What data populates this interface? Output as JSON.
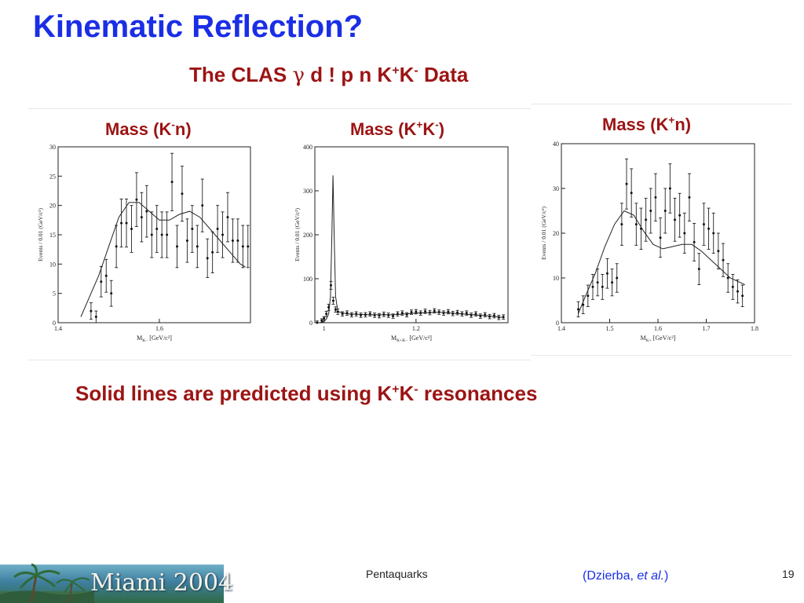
{
  "slide": {
    "title": "Kinematic Reflection?",
    "subtitle": {
      "prefix": "The CLAS ",
      "gamma": "γ",
      "mid": " d ! p n K",
      "sup1": "+",
      "k2": "K",
      "sup2": "-",
      "suffix": " Data"
    },
    "caption": {
      "prefix": "Solid lines are predicted using K",
      "sup1": "+",
      "k2": "K",
      "sup2": "-",
      "suffix": " resonances"
    }
  },
  "panels": {
    "kn": {
      "label_a": "Mass (K",
      "label_sup": "-",
      "label_b": "n)"
    },
    "kk": {
      "label_a": "Mass (K",
      "label_sup1": "+",
      "label_mid": "K",
      "label_sup2": "-",
      "label_b": ")"
    },
    "kpn": {
      "label_a": "Mass (K",
      "label_sup": "+",
      "label_b": "n)"
    }
  },
  "chart_data": [
    {
      "type": "scatter",
      "title": "Mass (K-n)",
      "xlabel": "M_{K-n} [GeV/c²]",
      "ylabel": "Events / 0.01 (GeV/c²)",
      "xlim": [
        1.4,
        1.78
      ],
      "ylim": [
        0,
        30
      ],
      "xticks": [
        {
          "v": 1.4,
          "label": "1.4"
        },
        {
          "v": 1.6,
          "label": "1.6"
        }
      ],
      "yticks": [
        0,
        5,
        10,
        15,
        20,
        25,
        30
      ],
      "points": [
        {
          "x": 1.465,
          "y": 2,
          "e": 1.4
        },
        {
          "x": 1.475,
          "y": 1,
          "e": 1
        },
        {
          "x": 1.485,
          "y": 7,
          "e": 2.6
        },
        {
          "x": 1.495,
          "y": 8,
          "e": 2.8
        },
        {
          "x": 1.505,
          "y": 5,
          "e": 2.2
        },
        {
          "x": 1.515,
          "y": 13,
          "e": 3.6
        },
        {
          "x": 1.525,
          "y": 17,
          "e": 4.1
        },
        {
          "x": 1.535,
          "y": 17,
          "e": 4.1
        },
        {
          "x": 1.545,
          "y": 16,
          "e": 4.0
        },
        {
          "x": 1.555,
          "y": 21,
          "e": 4.6
        },
        {
          "x": 1.565,
          "y": 18,
          "e": 4.2
        },
        {
          "x": 1.575,
          "y": 19,
          "e": 4.4
        },
        {
          "x": 1.585,
          "y": 15,
          "e": 3.9
        },
        {
          "x": 1.595,
          "y": 16,
          "e": 4.0
        },
        {
          "x": 1.605,
          "y": 15,
          "e": 3.9
        },
        {
          "x": 1.615,
          "y": 15,
          "e": 3.9
        },
        {
          "x": 1.625,
          "y": 24,
          "e": 4.9
        },
        {
          "x": 1.635,
          "y": 13,
          "e": 3.6
        },
        {
          "x": 1.645,
          "y": 22,
          "e": 4.7
        },
        {
          "x": 1.655,
          "y": 14,
          "e": 3.7
        },
        {
          "x": 1.665,
          "y": 16,
          "e": 4.0
        },
        {
          "x": 1.675,
          "y": 13,
          "e": 3.6
        },
        {
          "x": 1.685,
          "y": 20,
          "e": 4.5
        },
        {
          "x": 1.695,
          "y": 11,
          "e": 3.3
        },
        {
          "x": 1.705,
          "y": 12,
          "e": 3.5
        },
        {
          "x": 1.715,
          "y": 16,
          "e": 4.0
        },
        {
          "x": 1.725,
          "y": 15,
          "e": 3.9
        },
        {
          "x": 1.735,
          "y": 18,
          "e": 4.2
        },
        {
          "x": 1.745,
          "y": 14,
          "e": 3.7
        },
        {
          "x": 1.755,
          "y": 14,
          "e": 3.7
        },
        {
          "x": 1.765,
          "y": 13,
          "e": 3.6
        },
        {
          "x": 1.775,
          "y": 13,
          "e": 3.6
        }
      ],
      "curve": [
        [
          1.445,
          1
        ],
        [
          1.46,
          4
        ],
        [
          1.48,
          8
        ],
        [
          1.5,
          13
        ],
        [
          1.52,
          18
        ],
        [
          1.54,
          20.5
        ],
        [
          1.56,
          20.5
        ],
        [
          1.58,
          19
        ],
        [
          1.6,
          17.5
        ],
        [
          1.62,
          17.5
        ],
        [
          1.64,
          18.5
        ],
        [
          1.66,
          19
        ],
        [
          1.68,
          18
        ],
        [
          1.7,
          16
        ],
        [
          1.72,
          14
        ],
        [
          1.74,
          12
        ],
        [
          1.76,
          10
        ],
        [
          1.77,
          9.5
        ]
      ]
    },
    {
      "type": "scatter",
      "title": "Mass (K+K-)",
      "xlabel": "M_{K+K-} [GeV/c²]",
      "ylabel": "Events / 0.01 (GeV/c²)",
      "xlim": [
        0.98,
        1.4
      ],
      "ylim": [
        0,
        400
      ],
      "xticks": [
        {
          "v": 1.0,
          "label": "1"
        },
        {
          "v": 1.2,
          "label": "1.2"
        }
      ],
      "yticks": [
        0,
        100,
        200,
        300,
        400
      ],
      "points": [
        {
          "x": 0.985,
          "y": 0,
          "e": 4
        },
        {
          "x": 0.995,
          "y": 5,
          "e": 4
        },
        {
          "x": 1.0,
          "y": 10,
          "e": 4
        },
        {
          "x": 1.005,
          "y": 20,
          "e": 6
        },
        {
          "x": 1.01,
          "y": 35,
          "e": 7
        },
        {
          "x": 1.015,
          "y": 85,
          "e": 9
        },
        {
          "x": 1.02,
          "y": 50,
          "e": 8
        },
        {
          "x": 1.025,
          "y": 30,
          "e": 6
        },
        {
          "x": 1.03,
          "y": 25,
          "e": 6
        },
        {
          "x": 1.04,
          "y": 20,
          "e": 5
        },
        {
          "x": 1.05,
          "y": 22,
          "e": 5
        },
        {
          "x": 1.06,
          "y": 18,
          "e": 5
        },
        {
          "x": 1.07,
          "y": 20,
          "e": 5
        },
        {
          "x": 1.08,
          "y": 17,
          "e": 5
        },
        {
          "x": 1.09,
          "y": 18,
          "e": 5
        },
        {
          "x": 1.1,
          "y": 20,
          "e": 5
        },
        {
          "x": 1.11,
          "y": 17,
          "e": 5
        },
        {
          "x": 1.12,
          "y": 16,
          "e": 5
        },
        {
          "x": 1.13,
          "y": 19,
          "e": 5
        },
        {
          "x": 1.14,
          "y": 17,
          "e": 5
        },
        {
          "x": 1.15,
          "y": 15,
          "e": 5
        },
        {
          "x": 1.16,
          "y": 20,
          "e": 5
        },
        {
          "x": 1.17,
          "y": 22,
          "e": 5
        },
        {
          "x": 1.18,
          "y": 18,
          "e": 5
        },
        {
          "x": 1.19,
          "y": 24,
          "e": 5
        },
        {
          "x": 1.2,
          "y": 25,
          "e": 5
        },
        {
          "x": 1.21,
          "y": 22,
          "e": 5
        },
        {
          "x": 1.22,
          "y": 26,
          "e": 5
        },
        {
          "x": 1.23,
          "y": 23,
          "e": 5
        },
        {
          "x": 1.24,
          "y": 27,
          "e": 5
        },
        {
          "x": 1.25,
          "y": 24,
          "e": 5
        },
        {
          "x": 1.26,
          "y": 22,
          "e": 5
        },
        {
          "x": 1.27,
          "y": 25,
          "e": 5
        },
        {
          "x": 1.28,
          "y": 21,
          "e": 5
        },
        {
          "x": 1.29,
          "y": 23,
          "e": 5
        },
        {
          "x": 1.3,
          "y": 20,
          "e": 5
        },
        {
          "x": 1.31,
          "y": 22,
          "e": 5
        },
        {
          "x": 1.32,
          "y": 17,
          "e": 5
        },
        {
          "x": 1.33,
          "y": 20,
          "e": 5
        },
        {
          "x": 1.34,
          "y": 15,
          "e": 5
        },
        {
          "x": 1.35,
          "y": 18,
          "e": 5
        },
        {
          "x": 1.36,
          "y": 14,
          "e": 5
        },
        {
          "x": 1.37,
          "y": 16,
          "e": 5
        },
        {
          "x": 1.38,
          "y": 12,
          "e": 5
        },
        {
          "x": 1.39,
          "y": 13,
          "e": 5
        }
      ],
      "curve": [
        [
          0.99,
          0
        ],
        [
          1.0,
          3
        ],
        [
          1.005,
          8
        ],
        [
          1.01,
          20
        ],
        [
          1.014,
          60
        ],
        [
          1.017,
          200
        ],
        [
          1.0195,
          335
        ],
        [
          1.022,
          200
        ],
        [
          1.025,
          60
        ],
        [
          1.03,
          25
        ],
        [
          1.05,
          20
        ],
        [
          1.1,
          18
        ],
        [
          1.15,
          18
        ],
        [
          1.2,
          22
        ],
        [
          1.25,
          24
        ],
        [
          1.3,
          20
        ],
        [
          1.35,
          16
        ],
        [
          1.39,
          12
        ]
      ]
    },
    {
      "type": "scatter",
      "title": "Mass (K+n)",
      "xlabel": "M_{K+n} [GeV/c²]",
      "ylabel": "Events / 0.01 (GeV/c²)",
      "xlim": [
        1.4,
        1.8
      ],
      "ylim": [
        0,
        40
      ],
      "xticks": [
        {
          "v": 1.4,
          "label": "1.4"
        },
        {
          "v": 1.5,
          "label": "1.5"
        },
        {
          "v": 1.6,
          "label": "1.6"
        },
        {
          "v": 1.7,
          "label": "1.7"
        },
        {
          "v": 1.8,
          "label": "1.8"
        }
      ],
      "yticks": [
        0,
        10,
        20,
        30,
        40
      ],
      "points": [
        {
          "x": 1.435,
          "y": 3,
          "e": 1.7
        },
        {
          "x": 1.445,
          "y": 4,
          "e": 2
        },
        {
          "x": 1.455,
          "y": 6,
          "e": 2.4
        },
        {
          "x": 1.465,
          "y": 8,
          "e": 2.8
        },
        {
          "x": 1.475,
          "y": 9,
          "e": 3
        },
        {
          "x": 1.485,
          "y": 8,
          "e": 2.8
        },
        {
          "x": 1.495,
          "y": 11,
          "e": 3.3
        },
        {
          "x": 1.505,
          "y": 9,
          "e": 3
        },
        {
          "x": 1.515,
          "y": 10,
          "e": 3.2
        },
        {
          "x": 1.525,
          "y": 22,
          "e": 4.7
        },
        {
          "x": 1.535,
          "y": 31,
          "e": 5.6
        },
        {
          "x": 1.545,
          "y": 29,
          "e": 5.4
        },
        {
          "x": 1.555,
          "y": 22,
          "e": 4.7
        },
        {
          "x": 1.565,
          "y": 21,
          "e": 4.6
        },
        {
          "x": 1.575,
          "y": 23,
          "e": 4.8
        },
        {
          "x": 1.585,
          "y": 25,
          "e": 5
        },
        {
          "x": 1.595,
          "y": 28,
          "e": 5.3
        },
        {
          "x": 1.605,
          "y": 19,
          "e": 4.4
        },
        {
          "x": 1.615,
          "y": 25,
          "e": 5
        },
        {
          "x": 1.625,
          "y": 30,
          "e": 5.5
        },
        {
          "x": 1.635,
          "y": 23,
          "e": 4.8
        },
        {
          "x": 1.645,
          "y": 24,
          "e": 4.9
        },
        {
          "x": 1.655,
          "y": 20,
          "e": 4.5
        },
        {
          "x": 1.665,
          "y": 28,
          "e": 5.3
        },
        {
          "x": 1.675,
          "y": 18,
          "e": 4.2
        },
        {
          "x": 1.685,
          "y": 12,
          "e": 3.5
        },
        {
          "x": 1.695,
          "y": 22,
          "e": 4.7
        },
        {
          "x": 1.705,
          "y": 21,
          "e": 4.6
        },
        {
          "x": 1.715,
          "y": 20,
          "e": 4.5
        },
        {
          "x": 1.725,
          "y": 16,
          "e": 4
        },
        {
          "x": 1.735,
          "y": 14,
          "e": 3.7
        },
        {
          "x": 1.745,
          "y": 10,
          "e": 3.2
        },
        {
          "x": 1.755,
          "y": 8,
          "e": 2.8
        },
        {
          "x": 1.765,
          "y": 7,
          "e": 2.6
        },
        {
          "x": 1.775,
          "y": 6,
          "e": 2.4
        }
      ],
      "curve": [
        [
          1.435,
          2
        ],
        [
          1.45,
          6
        ],
        [
          1.47,
          11
        ],
        [
          1.49,
          17
        ],
        [
          1.51,
          22
        ],
        [
          1.53,
          25
        ],
        [
          1.55,
          24
        ],
        [
          1.57,
          20.5
        ],
        [
          1.59,
          17.5
        ],
        [
          1.61,
          16.5
        ],
        [
          1.63,
          17
        ],
        [
          1.65,
          17.5
        ],
        [
          1.67,
          17.5
        ],
        [
          1.69,
          16
        ],
        [
          1.71,
          14
        ],
        [
          1.73,
          12
        ],
        [
          1.75,
          10
        ],
        [
          1.77,
          9
        ],
        [
          1.78,
          8.5
        ]
      ]
    }
  ],
  "footer": {
    "logo_text": "Miami 2004",
    "center": "Pentaquarks",
    "credit_a": "(Dzierba, ",
    "credit_b": "et al.",
    "credit_c": ")",
    "page": "19"
  }
}
